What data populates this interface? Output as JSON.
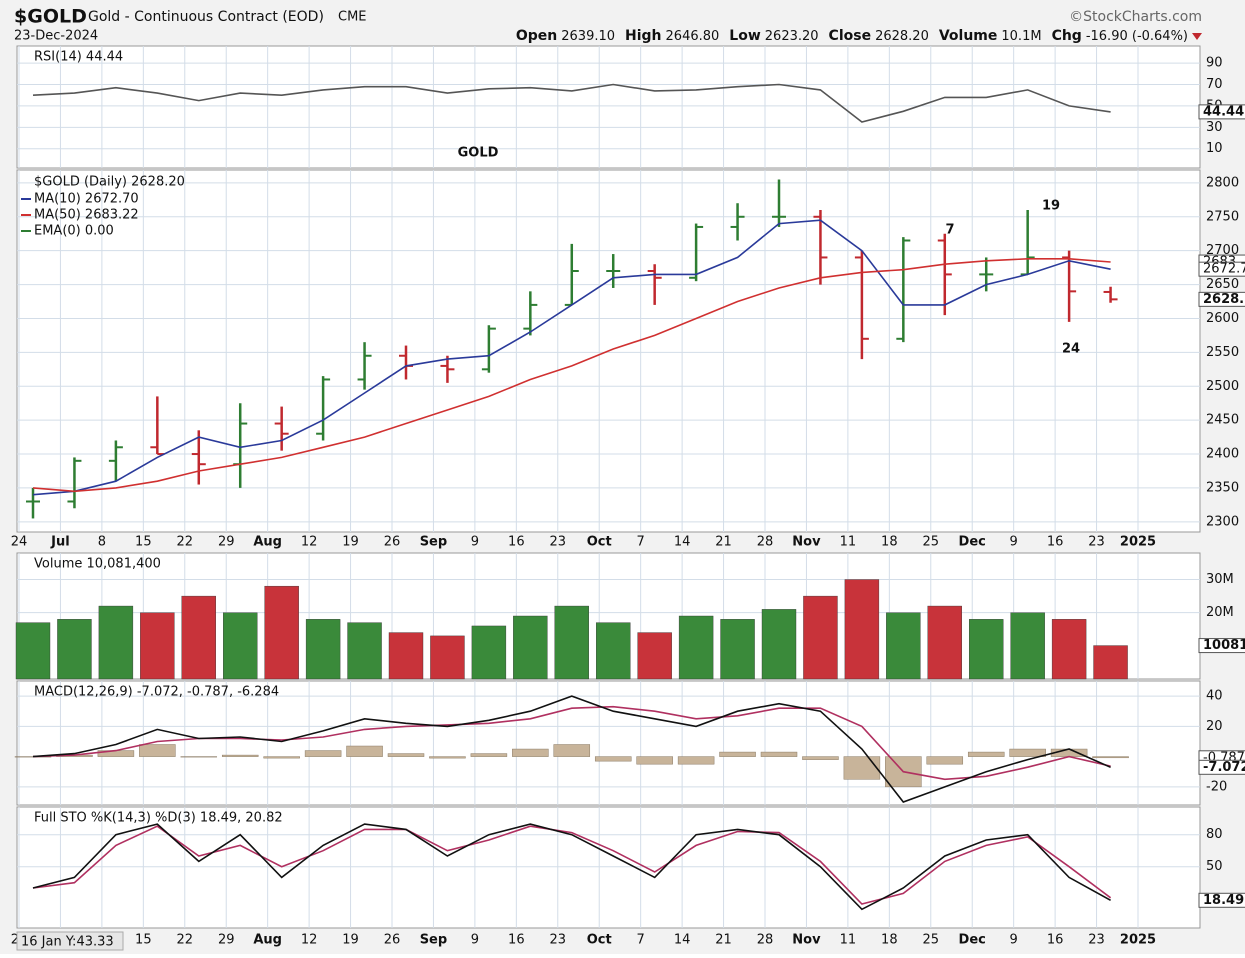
{
  "header": {
    "symbol": "$GOLD",
    "name": "Gold - Continuous Contract (EOD)",
    "exchange": "CME",
    "source": "©StockCharts.com",
    "date": "23-Dec-2024",
    "stats": [
      {
        "label": "Open",
        "value": "2639.10"
      },
      {
        "label": "High",
        "value": "2646.80"
      },
      {
        "label": "Low",
        "value": "2623.20"
      },
      {
        "label": "Close",
        "value": "2628.20"
      },
      {
        "label": "Volume",
        "value": "10.1M"
      },
      {
        "label": "Chg",
        "value": "-16.90 (-0.64%)"
      }
    ]
  },
  "annotations": [
    {
      "text": "GOLD",
      "color": "#f0a050"
    },
    {
      "text": "7",
      "color": "#e040e0"
    },
    {
      "text": "19",
      "color": "#e040e0"
    },
    {
      "text": "24",
      "color": "#e040e0"
    }
  ],
  "cursor_label": "16 Jan Y:43.33",
  "chart_data": [
    {
      "type": "line",
      "legend": "RSI(14) 44.44",
      "ylim": [
        -8,
        106
      ],
      "yticks": [
        10,
        30,
        50,
        70,
        90
      ],
      "grid": true,
      "value_boxes": [
        {
          "value": 44.44,
          "label": "44.44"
        }
      ],
      "series": [
        {
          "name": "RSI(14)",
          "color": "#555555",
          "values": [
            60,
            62,
            67,
            62,
            55,
            62,
            60,
            65,
            68,
            68,
            62,
            66,
            67,
            64,
            70,
            64,
            65,
            68,
            70,
            65,
            35,
            45,
            58,
            58,
            65,
            50,
            44.44,
            null
          ]
        }
      ]
    },
    {
      "type": "ohlc",
      "categories": [
        "24",
        "Jul",
        "8",
        "15",
        "22",
        "29",
        "Aug",
        "12",
        "19",
        "26",
        "Sep",
        "9",
        "16",
        "23",
        "Oct",
        "7",
        "14",
        "21",
        "28",
        "Nov",
        "11",
        "18",
        "25",
        "Dec",
        "9",
        "16",
        "23",
        "2025"
      ],
      "ylim": [
        2285,
        2819
      ],
      "yticks": [
        2300,
        2350,
        2400,
        2450,
        2500,
        2550,
        2600,
        2650,
        2700,
        2750,
        2800
      ],
      "grid": true,
      "up_color": "#2e7d32",
      "down_color": "#c0282e",
      "ohlc": {
        "name": "$GOLD (Daily) 2628.20",
        "open": [
          2330,
          2330,
          2390,
          2410,
          2400,
          2385,
          2445,
          2430,
          2510,
          2545,
          2530,
          2525,
          2585,
          2620,
          2670,
          2670,
          2660,
          2735,
          2750,
          2750,
          2690,
          2570,
          2715,
          2665,
          2665,
          2690,
          2639.1,
          null
        ],
        "high": [
          2350,
          2395,
          2420,
          2485,
          2435,
          2475,
          2470,
          2515,
          2565,
          2560,
          2545,
          2590,
          2640,
          2710,
          2695,
          2680,
          2740,
          2770,
          2805,
          2760,
          2700,
          2720,
          2725,
          2690,
          2760,
          2700,
          2646.8,
          null
        ],
        "low": [
          2305,
          2320,
          2360,
          2400,
          2355,
          2350,
          2405,
          2420,
          2495,
          2510,
          2505,
          2520,
          2575,
          2620,
          2645,
          2620,
          2655,
          2715,
          2735,
          2650,
          2540,
          2565,
          2605,
          2640,
          2665,
          2595,
          2623.2,
          null
        ],
        "close": [
          2330,
          2390,
          2410,
          2400,
          2385,
          2445,
          2430,
          2510,
          2545,
          2530,
          2525,
          2585,
          2620,
          2670,
          2670,
          2660,
          2735,
          2750,
          2750,
          2690,
          2570,
          2715,
          2665,
          2665,
          2690,
          2640,
          2628.2,
          null
        ]
      },
      "series": [
        {
          "name": "MA(10) 2672.70",
          "color": "#2a3a9a",
          "values": [
            2340,
            2345,
            2360,
            2395,
            2425,
            2410,
            2420,
            2450,
            2490,
            2530,
            2540,
            2545,
            2580,
            2620,
            2660,
            2665,
            2665,
            2690,
            2740,
            2745,
            2700,
            2620,
            2620,
            2650,
            2665,
            2685,
            2672.7,
            null
          ]
        },
        {
          "name": "MA(50) 2683.22",
          "color": "#d03030",
          "values": [
            2350,
            2345,
            2350,
            2360,
            2375,
            2385,
            2395,
            2410,
            2425,
            2445,
            2465,
            2485,
            2510,
            2530,
            2555,
            2575,
            2600,
            2625,
            2645,
            2660,
            2668,
            2672,
            2680,
            2685,
            2688,
            2688,
            2683.22,
            null
          ]
        }
      ],
      "legend_extra": {
        "name": "EMA(0) 0.00",
        "color": "#2e7d32"
      },
      "value_boxes": [
        {
          "value": 2683.22,
          "label": "2683"
        },
        {
          "value": 2672.7,
          "label": "2672.7"
        },
        {
          "value": 2628.2,
          "label": "2628.2"
        }
      ]
    },
    {
      "type": "bar",
      "legend": "Volume 10,081,400",
      "ylim": [
        0,
        38000000
      ],
      "yticks": [
        {
          "value": 30000000,
          "label": "30M"
        },
        {
          "value": 20000000,
          "label": "20M"
        }
      ],
      "grid": true,
      "value_boxes": [
        {
          "value": 10081400,
          "label": "10081400"
        }
      ],
      "values": [
        17000000,
        18000000,
        22000000,
        20000000,
        25000000,
        20000000,
        28000000,
        18000000,
        17000000,
        14000000,
        13000000,
        16000000,
        19000000,
        22000000,
        17000000,
        14000000,
        19000000,
        18000000,
        21000000,
        25000000,
        30000000,
        20000000,
        22000000,
        18000000,
        20000000,
        18000000,
        10081400,
        null
      ],
      "colors": [
        "#3a8a3a",
        "#3a8a3a",
        "#3a8a3a",
        "#c8333a",
        "#c8333a",
        "#3a8a3a",
        "#c8333a",
        "#3a8a3a",
        "#3a8a3a",
        "#c8333a",
        "#c8333a",
        "#3a8a3a",
        "#3a8a3a",
        "#3a8a3a",
        "#3a8a3a",
        "#c8333a",
        "#3a8a3a",
        "#3a8a3a",
        "#3a8a3a",
        "#c8333a",
        "#c8333a",
        "#3a8a3a",
        "#c8333a",
        "#3a8a3a",
        "#3a8a3a",
        "#c8333a",
        "#c8333a",
        null
      ]
    },
    {
      "type": "line",
      "legend": "MACD(12,26,9) -7.072, -0.787, -6.284",
      "ylim": [
        -32,
        50
      ],
      "yticks": [
        -20,
        20,
        40
      ],
      "grid": true,
      "value_boxes": [
        {
          "value": -0.787,
          "label": "-0.787"
        },
        {
          "value": -7.072,
          "label": "-7.072"
        }
      ],
      "series": [
        {
          "name": "Histogram",
          "mark": "bar",
          "color": "#c8b49a",
          "values": [
            0,
            1,
            4,
            8,
            0,
            1,
            -1,
            4,
            7,
            2,
            -1,
            2,
            5,
            8,
            -3,
            -5,
            -5,
            3,
            3,
            -2,
            -15,
            -20,
            -5,
            3,
            5,
            5,
            -0.787,
            null
          ]
        },
        {
          "name": "Signal",
          "color": "#b03060",
          "values": [
            0,
            1,
            4,
            10,
            12,
            12,
            11,
            13,
            18,
            20,
            21,
            22,
            25,
            32,
            33,
            30,
            25,
            27,
            32,
            32,
            20,
            -10,
            -15,
            -13,
            -7,
            0,
            -6.284,
            null
          ]
        },
        {
          "name": "MACD",
          "color": "#111111",
          "values": [
            0,
            2,
            8,
            18,
            12,
            13,
            10,
            17,
            25,
            22,
            20,
            24,
            30,
            40,
            30,
            25,
            20,
            30,
            35,
            30,
            5,
            -30,
            -20,
            -10,
            -2,
            5,
            -7.072,
            null
          ]
        }
      ]
    },
    {
      "type": "line",
      "legend": "Full STO %K(14,3) %D(3) 18.49, 20.82",
      "categories": [
        "24",
        "Jul",
        "8",
        "15",
        "22",
        "29",
        "Aug",
        "12",
        "19",
        "26",
        "Sep",
        "9",
        "16",
        "23",
        "Oct",
        "7",
        "14",
        "21",
        "28",
        "Nov",
        "11",
        "18",
        "25",
        "Dec",
        "9",
        "16",
        "23",
        "2025"
      ],
      "ylim": [
        -7.5,
        106
      ],
      "yticks": [
        50,
        80
      ],
      "grid": true,
      "value_boxes": [
        {
          "value": 18.49,
          "label": "18.49"
        }
      ],
      "series": [
        {
          "name": "%D",
          "color": "#b03060",
          "values": [
            30,
            35,
            70,
            88,
            60,
            70,
            50,
            65,
            85,
            85,
            65,
            75,
            88,
            82,
            65,
            45,
            70,
            83,
            82,
            55,
            15,
            25,
            55,
            70,
            78,
            50,
            20.82,
            null
          ]
        },
        {
          "name": "%K",
          "color": "#111111",
          "values": [
            30,
            40,
            80,
            90,
            55,
            80,
            40,
            70,
            90,
            85,
            60,
            80,
            90,
            80,
            60,
            40,
            80,
            85,
            80,
            50,
            10,
            30,
            60,
            75,
            80,
            40,
            18.49,
            null
          ]
        }
      ]
    }
  ]
}
